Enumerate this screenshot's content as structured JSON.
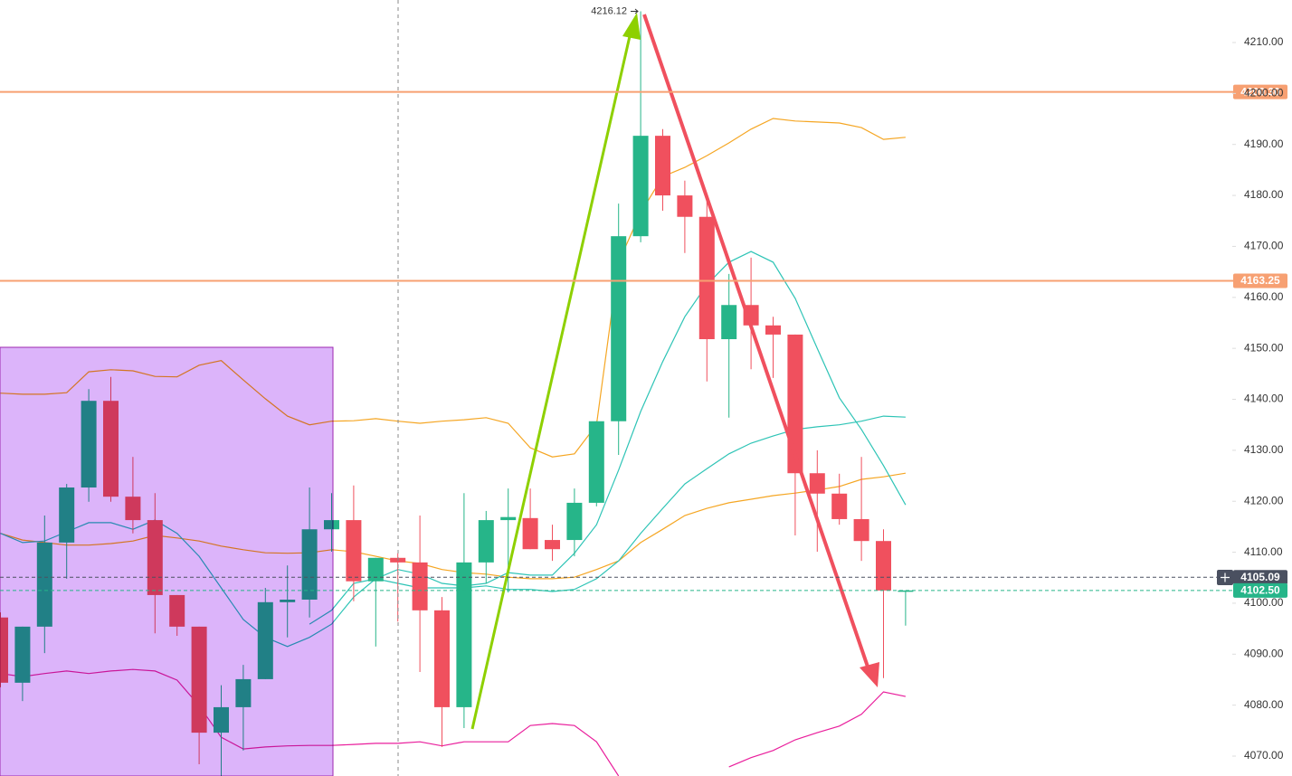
{
  "chart_data": {
    "type": "candlestick",
    "ylim": [
      4066.1,
      4218.34
    ],
    "yticks": [
      {
        "value": 4070,
        "label": "4070.00"
      },
      {
        "value": 4080,
        "label": "4080.00"
      },
      {
        "value": 4090,
        "label": "4090.00"
      },
      {
        "value": 4100,
        "label": "4100.00"
      },
      {
        "value": 4110,
        "label": "4110.00"
      },
      {
        "value": 4120,
        "label": "4120.00"
      },
      {
        "value": 4130,
        "label": "4130.00"
      },
      {
        "value": 4140,
        "label": "4140.00"
      },
      {
        "value": 4150,
        "label": "4150.00"
      },
      {
        "value": 4160,
        "label": "4160.00"
      },
      {
        "value": 4170,
        "label": "4170.00"
      },
      {
        "value": 4180,
        "label": "4180.00"
      },
      {
        "value": 4190,
        "label": "4190.00"
      },
      {
        "value": 4200,
        "label": "4200.00"
      },
      {
        "value": 4210,
        "label": "4210.00"
      }
    ],
    "grid": false,
    "up_color": "#26b589",
    "down_color": "#f0505e",
    "candles": {
      "open": [
        4097.2,
        4084.4,
        4095.4,
        4111.9,
        4122.7,
        4139.7,
        4120.9,
        4116.3,
        4101.6,
        4095.4,
        4074.6,
        4079.6,
        4085.1,
        4100.2,
        4100.7,
        4114.5,
        4116.3,
        4104.3,
        4108.9,
        4108.0,
        4098.6,
        4079.6,
        4108.0,
        4116.3,
        4116.7,
        4112.4,
        4112.4,
        4119.7,
        4135.7,
        4172.0,
        4191.7,
        4180.0,
        4175.8,
        4151.8,
        4158.5,
        4154.5,
        4152.7,
        4125.5,
        4121.5,
        4116.5,
        4112.2,
        4102.3
      ],
      "high": [
        4098.2,
        4095.4,
        4117.2,
        4123.4,
        4142.0,
        4144.4,
        4128.7,
        4121.6,
        4101.6,
        4095.4,
        4083.9,
        4087.9,
        4103.0,
        4107.4,
        4122.7,
        4121.6,
        4123.1,
        4108.9,
        4109.8,
        4117.2,
        4101.2,
        4121.6,
        4118.1,
        4122.5,
        4122.5,
        4115.4,
        4122.5,
        4135.7,
        4178.4,
        4216.12,
        4193.0,
        4182.9,
        4179.0,
        4164.6,
        4167.8,
        4156.2,
        4152.7,
        4130.0,
        4125.4,
        4128.7,
        4114.5,
        4102.5
      ],
      "low": [
        4083.5,
        4080.8,
        4090.2,
        4104.8,
        4119.9,
        4119.9,
        4113.7,
        4094.1,
        4093.6,
        4068.4,
        4066.1,
        4071.1,
        4085.1,
        4093.3,
        4097.2,
        4110.1,
        4100.4,
        4091.5,
        4096.4,
        4086.5,
        4071.8,
        4075.5,
        4103.9,
        4102.1,
        4110.6,
        4108.3,
        4109.2,
        4119.0,
        4129.1,
        4170.8,
        4177.0,
        4168.7,
        4143.5,
        4136.4,
        4145.9,
        4144.2,
        4113.3,
        4110.1,
        4115.4,
        4108.3,
        4085.3,
        4095.6
      ],
      "close": [
        4084.4,
        4095.4,
        4111.9,
        4122.7,
        4139.7,
        4120.9,
        4116.3,
        4101.6,
        4095.4,
        4074.6,
        4079.6,
        4085.1,
        4100.2,
        4100.7,
        4114.5,
        4116.3,
        4104.3,
        4108.9,
        4108.0,
        4098.6,
        4079.6,
        4108.0,
        4116.3,
        4116.9,
        4110.6,
        4110.6,
        4119.7,
        4135.7,
        4172.0,
        4191.7,
        4180.0,
        4175.8,
        4151.8,
        4158.5,
        4154.5,
        4152.7,
        4125.5,
        4121.5,
        4116.5,
        4112.2,
        4102.5,
        4102.5
      ]
    },
    "series": [
      {
        "color": "#f5a623",
        "values": [
          4141.2,
          4141.0,
          4141.0,
          4141.3,
          4145.4,
          4145.8,
          4145.6,
          4144.5,
          4144.4,
          4146.7,
          4147.6,
          4143.8,
          4140.1,
          4136.7,
          4135.0,
          4135.7,
          4135.8,
          4136.2,
          4135.7,
          4135.3,
          4135.7,
          4136.0,
          4136.4,
          4135.3,
          4130.5,
          4128.7,
          4129.3,
          4135.0,
          4166.9,
          4176.6,
          4183.7,
          4185.5,
          4187.8,
          4190.3,
          4193.0,
          4195.1,
          4194.6,
          4194.4,
          4194.2,
          4193.3,
          4191.0,
          4191.4
        ]
      },
      {
        "color": "#f5a623",
        "values": [
          4113.7,
          4112.4,
          4111.9,
          4111.4,
          4111.4,
          4111.7,
          4112.2,
          4113.3,
          4112.8,
          4112.2,
          4111.2,
          4110.5,
          4109.9,
          4109.8,
          4109.9,
          4110.5,
          4110.1,
          4109.2,
          4108.3,
          4107.8,
          4106.6,
          4106.0,
          4105.7,
          4105.1,
          4104.8,
          4104.8,
          4105.1,
          4106.6,
          4108.3,
          4111.9,
          4114.5,
          4117.2,
          4118.6,
          4119.7,
          4120.4,
          4121.1,
          4121.6,
          4122.2,
          4122.9,
          4124.3,
          4124.8,
          4125.5
        ]
      },
      {
        "color": "#e91e9c",
        "values": [
          4086.2,
          4085.6,
          4086.2,
          4086.7,
          4086.2,
          4086.7,
          4087.0,
          4086.7,
          4084.9,
          4079.9,
          4073.7,
          4071.4,
          4071.8,
          4072.0,
          4072.1,
          4072.1,
          4072.3,
          4072.5,
          4072.5,
          4072.8,
          4072.0,
          4072.8,
          4072.8,
          4072.8,
          4076.0,
          4076.4,
          4076.0,
          4072.8,
          4066.1,
          null,
          null,
          null,
          null,
          4067.9,
          4069.7,
          4071.1,
          4073.2,
          4074.6,
          4075.9,
          4078.2,
          4082.6,
          4081.7
        ]
      },
      {
        "color": "#2ec4b6",
        "values": [
          4113.7,
          4111.9,
          4112.2,
          4114.0,
          4115.8,
          4115.8,
          4114.5,
          4116.3,
          4113.7,
          4109.2,
          4103.0,
          4096.8,
          4093.3,
          4091.5,
          4093.3,
          4095.9,
          4101.2,
          4104.8,
          4106.6,
          4105.7,
          4103.9,
          4103.4,
          4103.9,
          4106.0,
          4105.5,
          4105.5,
          4109.8,
          4115.4,
          4126.1,
          4137.6,
          4147.4,
          4156.2,
          4162.5,
          4166.9,
          4169.0,
          4166.9,
          4159.8,
          4150.0,
          4140.3,
          4134.1,
          4127.0,
          4119.3
        ]
      },
      {
        "color": "#2ec4b6",
        "values": [
          null,
          null,
          null,
          null,
          null,
          null,
          null,
          null,
          null,
          null,
          null,
          null,
          null,
          null,
          4095.9,
          4098.6,
          4103.9,
          4104.8,
          4103.9,
          4103.0,
          4103.0,
          4103.0,
          4103.4,
          4102.7,
          4102.7,
          4102.3,
          4102.7,
          4104.8,
          4108.3,
          4113.7,
          4118.6,
          4123.4,
          4126.4,
          4129.3,
          4131.4,
          4132.8,
          4134.1,
          4134.6,
          4135.0,
          4135.7,
          4136.7,
          4136.5
        ]
      }
    ],
    "price_lines": [
      {
        "value": 4200.3,
        "label": "4200.30",
        "color": "#f7a072",
        "style": "solid"
      },
      {
        "value": 4163.25,
        "label": "4163.25",
        "color": "#f7a072",
        "style": "solid"
      },
      {
        "value": 4105.09,
        "label": "4105.09",
        "color": "#4a5060",
        "style": "dashed"
      },
      {
        "value": 4102.5,
        "label": "4102.50",
        "color": "#26b589",
        "style": "dashed"
      }
    ],
    "high_marker": {
      "value": 4216.12,
      "label": "4216.12"
    }
  }
}
